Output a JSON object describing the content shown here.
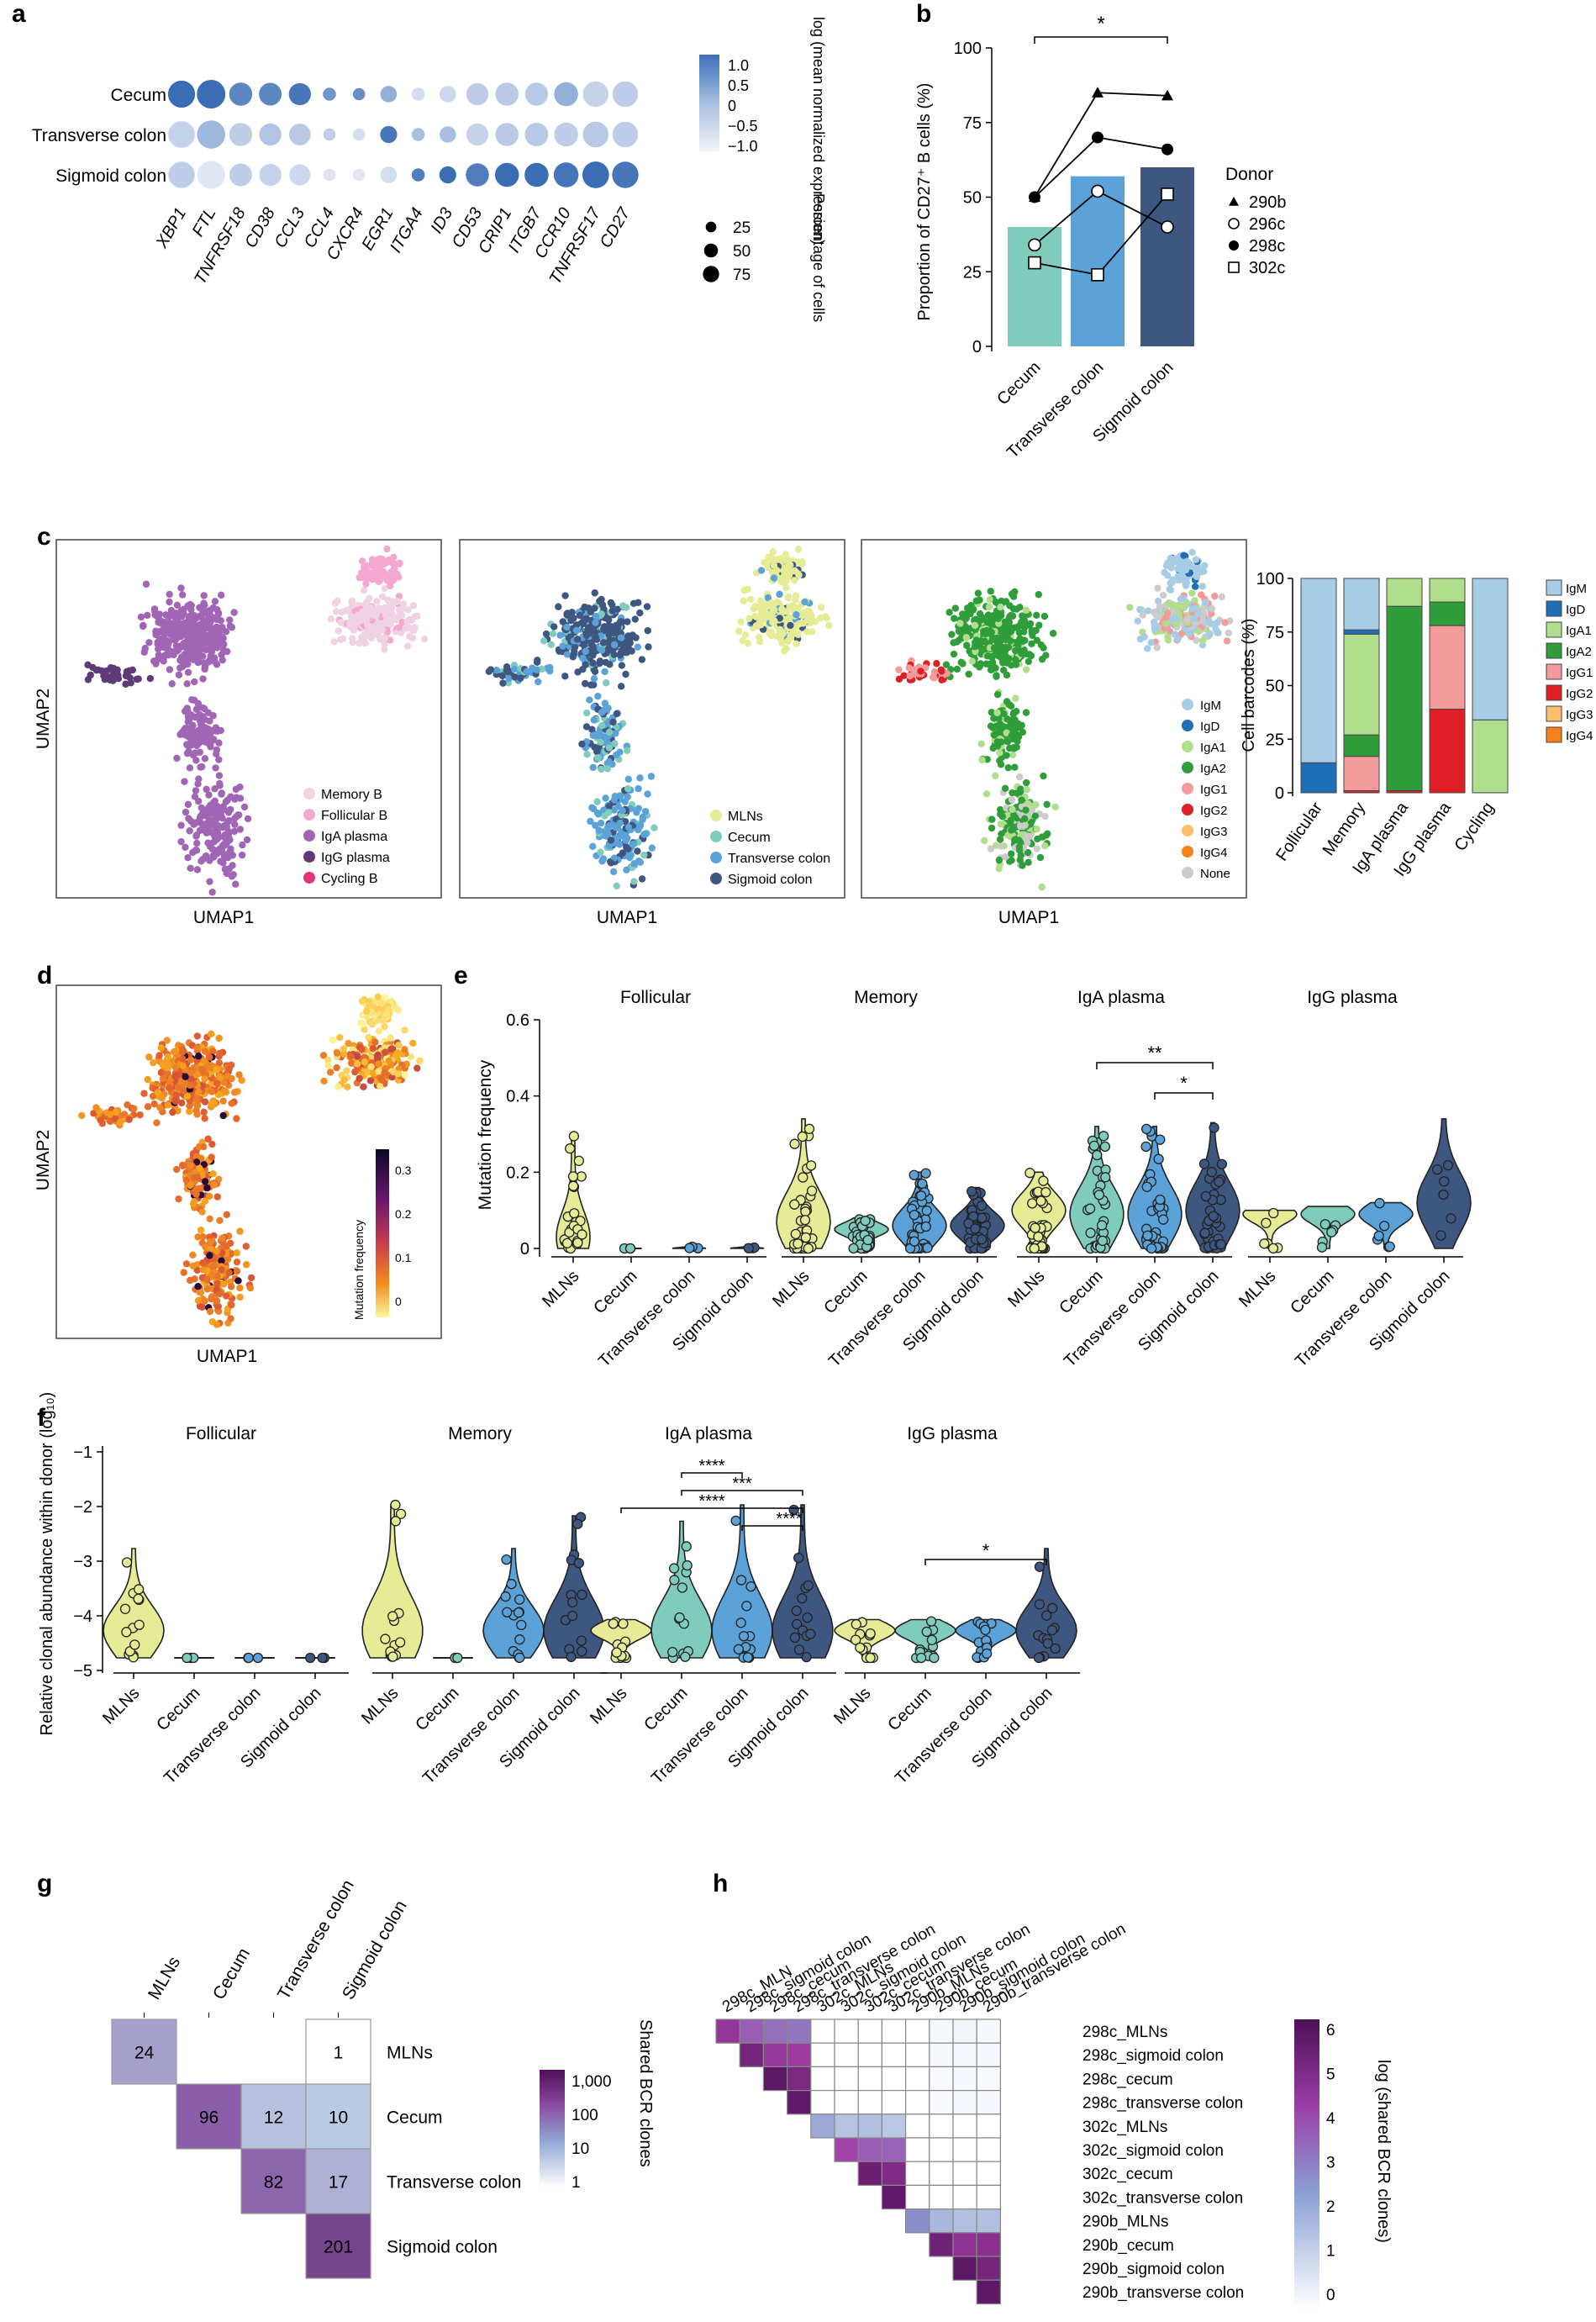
{
  "panel_labels": {
    "a": "a",
    "b": "b",
    "c": "c",
    "d": "d",
    "e": "e",
    "f": "f",
    "g": "g",
    "h": "h"
  },
  "colors": {
    "mlns": "#e6eb96",
    "cecum": "#7fccbc",
    "transverse": "#5aa2d8",
    "sigmoid": "#3e5781",
    "mem_b": "#f0d3e3",
    "fol_b": "#f4a8cf",
    "iga_plasma": "#a066b5",
    "igg_plasma": "#5e3b78",
    "cyc_b": "#e0357c",
    "IgM": "#a7cde6",
    "IgD": "#1f6fb4",
    "IgA1": "#b1de8d",
    "IgA2": "#2f9e3a",
    "IgG1": "#f39a9b",
    "IgG2": "#de2026",
    "IgG3": "#fbbf6b",
    "IgG4": "#f7801c",
    "None": "#cccccc"
  },
  "chart_data": [
    {
      "id": "a",
      "type": "heatmap",
      "rows": [
        "Cecum",
        "Transverse colon",
        "Sigmoid colon"
      ],
      "cols": [
        "XBP1",
        "FTL",
        "TNFRSF18",
        "CD38",
        "CCL3",
        "CCL4",
        "CXCR4",
        "EGR1",
        "ITGA4",
        "ID3",
        "CD53",
        "CRIP1",
        "ITGB7",
        "CCR10",
        "TNFRSF17",
        "CD27"
      ],
      "color_values": [
        [
          1.0,
          1.0,
          0.7,
          0.7,
          0.9,
          0.5,
          0.6,
          0.2,
          -0.6,
          -0.5,
          -0.3,
          -0.2,
          -0.2,
          0.2,
          -0.4,
          -0.3
        ],
        [
          -0.4,
          0.1,
          -0.3,
          -0.1,
          -0.2,
          -0.3,
          -0.6,
          0.9,
          0.0,
          0.0,
          -0.4,
          -0.2,
          -0.2,
          -0.3,
          -0.2,
          -0.3
        ],
        [
          -0.3,
          -0.8,
          -0.3,
          -0.4,
          -0.5,
          -0.8,
          -0.8,
          -0.6,
          0.8,
          1.0,
          0.8,
          1.0,
          1.0,
          0.9,
          1.0,
          0.9
        ]
      ],
      "size_values": [
        [
          75,
          85,
          50,
          48,
          45,
          10,
          8,
          20,
          10,
          20,
          45,
          50,
          50,
          55,
          65,
          65
        ],
        [
          72,
          82,
          50,
          45,
          42,
          8,
          8,
          22,
          10,
          20,
          45,
          50,
          52,
          55,
          65,
          65
        ],
        [
          70,
          80,
          48,
          45,
          40,
          8,
          8,
          20,
          10,
          22,
          50,
          55,
          55,
          60,
          72,
          70
        ]
      ],
      "colorbar_title": "log (mean normalized expression)",
      "colorbar_ticks": [
        "1.0",
        "0.5",
        "0",
        "−0.5",
        "−1.0"
      ],
      "size_title": "Percentage of cells",
      "size_ticks": [
        25,
        50,
        75
      ]
    },
    {
      "id": "b",
      "type": "bar",
      "categories": [
        "Cecum",
        "Transverse colon",
        "Sigmoid colon"
      ],
      "values": [
        40,
        57,
        60
      ],
      "ylabel": "Proportion of CD27⁺ B cells (%)",
      "ylim": [
        0,
        100
      ],
      "yticks": [
        0,
        25,
        50,
        75,
        100
      ],
      "donors": [
        {
          "name": "290b",
          "marker": "triangle",
          "values": [
            50,
            85,
            84
          ]
        },
        {
          "name": "296c",
          "marker": "circle-open",
          "values": [
            34,
            52,
            40
          ]
        },
        {
          "name": "298c",
          "marker": "circle-filled",
          "values": [
            50,
            70,
            66
          ]
        },
        {
          "name": "302c",
          "marker": "square-open",
          "values": [
            28,
            24,
            51
          ]
        }
      ],
      "legend_title": "Donor",
      "significance": {
        "from": "Cecum",
        "to": "Sigmoid colon",
        "label": "*"
      }
    },
    {
      "id": "c",
      "type": "scatter",
      "xlabel": "UMAP1",
      "ylabel": "UMAP2",
      "umaps": [
        {
          "legend": [
            "Memory B",
            "Follicular B",
            "IgA plasma",
            "IgG plasma",
            "Cycling B"
          ]
        },
        {
          "legend": [
            "MLNs",
            "Cecum",
            "Transverse colon",
            "Sigmoid colon"
          ]
        },
        {
          "legend": [
            "IgM",
            "IgD",
            "IgA1",
            "IgA2",
            "IgG1",
            "IgG2",
            "IgG3",
            "IgG4",
            "None"
          ]
        }
      ],
      "stacked": {
        "type": "bar",
        "categories": [
          "Follicular",
          "Memory",
          "IgA plasma",
          "IgG plasma",
          "Cycling"
        ],
        "ylabel": "Cell barcodes (%)",
        "yticks": [
          0,
          25,
          50,
          75,
          100
        ],
        "series": [
          {
            "name": "IgM",
            "values": [
              86,
              24,
              0,
              0,
              66
            ]
          },
          {
            "name": "IgD",
            "values": [
              14,
              2,
              0,
              0,
              0
            ]
          },
          {
            "name": "IgA1",
            "values": [
              0,
              47,
              13,
              11,
              34
            ]
          },
          {
            "name": "IgA2",
            "values": [
              0,
              10,
              86,
              11,
              0
            ]
          },
          {
            "name": "IgG1",
            "values": [
              0,
              16,
              0,
              39,
              0
            ]
          },
          {
            "name": "IgG2",
            "values": [
              0,
              1,
              1,
              39,
              0
            ]
          },
          {
            "name": "IgG3",
            "values": [
              0,
              0,
              0,
              0,
              0
            ]
          },
          {
            "name": "IgG4",
            "values": [
              0,
              0,
              0,
              0,
              0
            ]
          }
        ],
        "legend": [
          "IgM",
          "IgD",
          "IgA1",
          "IgA2",
          "IgG1",
          "IgG2",
          "IgG3",
          "IgG4"
        ]
      }
    },
    {
      "id": "d",
      "type": "scatter",
      "xlabel": "UMAP1",
      "ylabel": "UMAP2",
      "colorbar_title": "Mutation frequency",
      "colorbar_ticks": [
        "0.3",
        "0.2",
        "0.1",
        "0"
      ]
    },
    {
      "id": "e",
      "type": "violin",
      "ylabel": "Mutation frequency",
      "ylim": [
        0,
        0.6
      ],
      "yticks": [
        "0",
        "0.2",
        "0.4",
        "0.6"
      ],
      "groups": [
        "MLNs",
        "Cecum",
        "Transverse colon",
        "Sigmoid colon"
      ],
      "facets": [
        {
          "title": "Follicular",
          "medians": [
            0.03,
            0.0,
            0.0,
            0.0
          ],
          "max": [
            0.3,
            0.0,
            0.01,
            0.01
          ]
        },
        {
          "title": "Memory",
          "medians": [
            0.07,
            0.05,
            0.06,
            0.06
          ],
          "max": [
            0.34,
            0.08,
            0.2,
            0.16
          ]
        },
        {
          "title": "IgA plasma",
          "medians": [
            0.1,
            0.09,
            0.09,
            0.1
          ],
          "max": [
            0.2,
            0.32,
            0.32,
            0.33
          ]
        },
        {
          "title": "IgG plasma",
          "medians": [
            0.09,
            0.09,
            0.09,
            0.12
          ],
          "max": [
            0.1,
            0.11,
            0.12,
            0.34
          ]
        }
      ],
      "significance": [
        {
          "facet": "IgA plasma",
          "from": "Cecum",
          "to": "Sigmoid colon",
          "label": "**"
        },
        {
          "facet": "IgA plasma",
          "from": "Transverse colon",
          "to": "Sigmoid colon",
          "label": "*"
        }
      ]
    },
    {
      "id": "f",
      "type": "violin",
      "ylabel": "Relative clonal abundance within donor (log₁₀)",
      "ylim": [
        -5,
        -1
      ],
      "yticks": [
        "−1",
        "−2",
        "−3",
        "−4",
        "−5"
      ],
      "groups": [
        "MLNs",
        "Cecum",
        "Transverse colon",
        "Sigmoid colon"
      ],
      "facets": [
        {
          "title": "Follicular",
          "max": [
            -2.8,
            -4.8,
            -4.8,
            -4.8
          ]
        },
        {
          "title": "Memory",
          "max": [
            -2.0,
            -4.8,
            -2.8,
            -2.2
          ]
        },
        {
          "title": "IgA plasma",
          "max": [
            -4.1,
            -2.3,
            -2.0,
            -2.0
          ]
        },
        {
          "title": "IgG plasma",
          "max": [
            -4.1,
            -4.1,
            -4.1,
            -2.8
          ]
        }
      ],
      "significance": [
        {
          "facet": "IgA plasma",
          "from": "Cecum",
          "to": "Transverse colon",
          "label": "****"
        },
        {
          "facet": "IgA plasma",
          "from": "Cecum",
          "to": "Sigmoid colon",
          "label": "***"
        },
        {
          "facet": "IgA plasma",
          "from": "MLNs",
          "to": "Sigmoid colon",
          "label": "****"
        },
        {
          "facet": "IgA plasma",
          "from": "Transverse colon",
          "to": "Sigmoid colon",
          "label": "****"
        },
        {
          "facet": "IgG plasma",
          "from": "Cecum",
          "to": "Sigmoid colon",
          "label": "*"
        }
      ]
    },
    {
      "id": "g",
      "type": "heatmap",
      "labels": [
        "MLNs",
        "Cecum",
        "Transverse colon",
        "Sigmoid colon"
      ],
      "cells": [
        {
          "row": "MLNs",
          "col": "MLNs",
          "value": 24
        },
        {
          "row": "MLNs",
          "col": "Sigmoid colon",
          "value": 1
        },
        {
          "row": "Cecum",
          "col": "Cecum",
          "value": 96
        },
        {
          "row": "Cecum",
          "col": "Transverse colon",
          "value": 12
        },
        {
          "row": "Cecum",
          "col": "Sigmoid colon",
          "value": 10
        },
        {
          "row": "Transverse colon",
          "col": "Transverse colon",
          "value": 82
        },
        {
          "row": "Transverse colon",
          "col": "Sigmoid colon",
          "value": 17
        },
        {
          "row": "Sigmoid colon",
          "col": "Sigmoid colon",
          "value": 201
        }
      ],
      "colorbar_title": "Shared BCR clones",
      "colorbar_ticks": [
        "1,000",
        "100",
        "10",
        "1"
      ]
    },
    {
      "id": "h",
      "type": "heatmap",
      "col_labels": [
        "298c_MLN",
        "298c_sigmoid colon",
        "298c_cecum",
        "298c_transverse colon",
        "302c_MLNs",
        "302c_sigmoid colon",
        "302c_cecum",
        "302c_transverse colon",
        "290b_MLNs",
        "290b_cecum",
        "290b_sigmoid colon",
        "290b_transverse colon"
      ],
      "row_labels": [
        "298c_MLNs",
        "298c_sigmoid colon",
        "298c_cecum",
        "298c_transverse colon",
        "302c_MLNs",
        "302c_sigmoid colon",
        "302c_cecum",
        "302c_transverse colon",
        "290b_MLNs",
        "290b_cecum",
        "290b_sigmoid colon",
        "290b_transverse colon"
      ],
      "matrix": [
        [
          5.4,
          4.6,
          4.3,
          4.2,
          0.0,
          0.0,
          0.0,
          0.0,
          0.0,
          0.4,
          0.5,
          0.4
        ],
        [
          null,
          6.0,
          5.3,
          5.2,
          0.0,
          0.0,
          0.0,
          0.0,
          0.0,
          0.4,
          0.4,
          0.4
        ],
        [
          null,
          null,
          6.5,
          5.9,
          0.0,
          0.0,
          0.0,
          0.0,
          0.0,
          0.3,
          0.4,
          0.3
        ],
        [
          null,
          null,
          null,
          6.4,
          0.0,
          0.0,
          0.0,
          0.0,
          0.0,
          0.3,
          0.4,
          0.4
        ],
        [
          null,
          null,
          null,
          null,
          3.2,
          2.5,
          2.6,
          2.4,
          0.0,
          0.0,
          0.0,
          0.0
        ],
        [
          null,
          null,
          null,
          null,
          null,
          5.0,
          4.6,
          4.5,
          0.0,
          0.0,
          0.0,
          0.0
        ],
        [
          null,
          null,
          null,
          null,
          null,
          null,
          6.2,
          5.8,
          0.0,
          0.0,
          0.0,
          0.0
        ],
        [
          null,
          null,
          null,
          null,
          null,
          null,
          null,
          6.4,
          0.0,
          0.0,
          0.0,
          0.0
        ],
        [
          null,
          null,
          null,
          null,
          null,
          null,
          null,
          null,
          3.8,
          2.8,
          2.6,
          2.6
        ],
        [
          null,
          null,
          null,
          null,
          null,
          null,
          null,
          null,
          null,
          6.1,
          5.5,
          5.6
        ],
        [
          null,
          null,
          null,
          null,
          null,
          null,
          null,
          null,
          null,
          null,
          6.5,
          6.0
        ],
        [
          null,
          null,
          null,
          null,
          null,
          null,
          null,
          null,
          null,
          null,
          null,
          6.5
        ]
      ],
      "colorbar_title": "log (shared BCR clones)",
      "colorbar_ticks": [
        "6",
        "5",
        "4",
        "3",
        "2",
        "1",
        "0"
      ]
    }
  ]
}
